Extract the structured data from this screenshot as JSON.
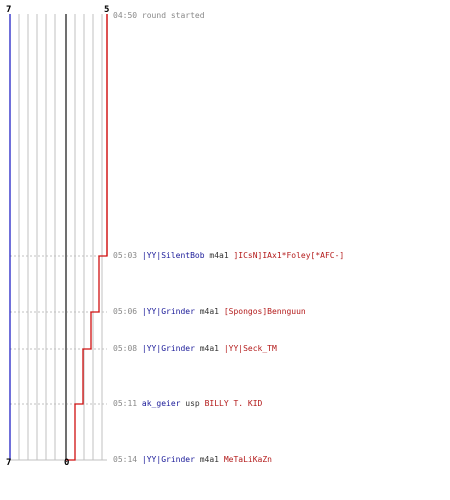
{
  "scores": {
    "team_a_top": "7",
    "team_b_top": "5",
    "team_a_bottom": "7",
    "team_b_bottom": "0"
  },
  "colors": {
    "team_a": "#1010c0",
    "team_b": "#d01010",
    "time": "#888888",
    "weapon": "#333333",
    "grid": "#c0c0c0",
    "axis": "#707070"
  },
  "events": [
    {
      "time": "04:50",
      "text": "round started"
    },
    {
      "time": "05:03",
      "killer": "|YY|SilentBob",
      "weapon": "m4a1",
      "victim": "]ICsN]IAx1*Foley[*AFC-]"
    },
    {
      "time": "05:06",
      "killer": "|YY|Grinder",
      "weapon": "m4a1",
      "victim": "[Spongos]Bennguun"
    },
    {
      "time": "05:08",
      "killer": "|YY|Grinder",
      "weapon": "m4a1",
      "victim": "|YY|Seck_TM"
    },
    {
      "time": "05:11",
      "killer": "ak_geier",
      "weapon": "usp",
      "victim": "BILLY T. KID"
    },
    {
      "time": "05:14",
      "killer": "|YY|Grinder",
      "weapon": "m4a1",
      "victim": "MeTaLiKaZn"
    }
  ]
}
